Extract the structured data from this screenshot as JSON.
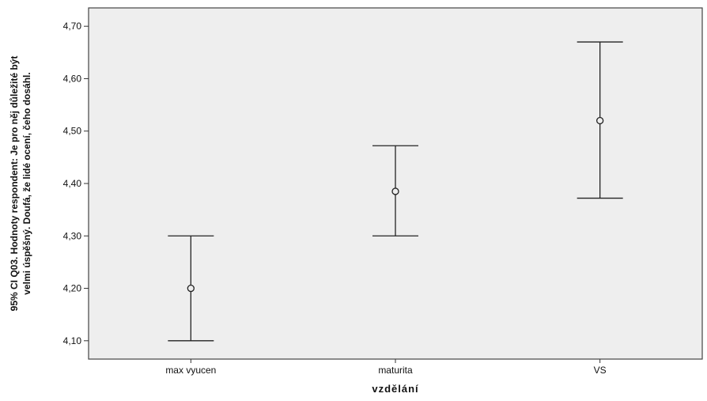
{
  "chart_data": {
    "type": "errorbar",
    "title": "",
    "xlabel": "vzdělání",
    "ylabel_lines": [
      "95% CI Q03.  Hodnoty respondent: Je pro něj důležité být",
      "velmi úspěšný. Doufá, že lidé ocení, čeho dosáhl."
    ],
    "categories": [
      "max vyucen",
      "maturita",
      "VS"
    ],
    "mean": [
      4.2,
      4.385,
      4.52
    ],
    "lower": [
      4.1,
      4.3,
      4.372
    ],
    "upper": [
      4.3,
      4.472,
      4.67
    ],
    "ylim": [
      4.065,
      4.735
    ],
    "yticks": [
      4.1,
      4.2,
      4.3,
      4.4,
      4.5,
      4.6,
      4.7
    ],
    "ytick_labels": [
      "4,10",
      "4,20",
      "4,30",
      "4,40",
      "4,50",
      "4,60",
      "4,70"
    ],
    "grid": false,
    "legend": "none",
    "colors": {
      "plot_bg": "#eeeeee",
      "frame": "#444444",
      "marks": "#222222"
    }
  }
}
